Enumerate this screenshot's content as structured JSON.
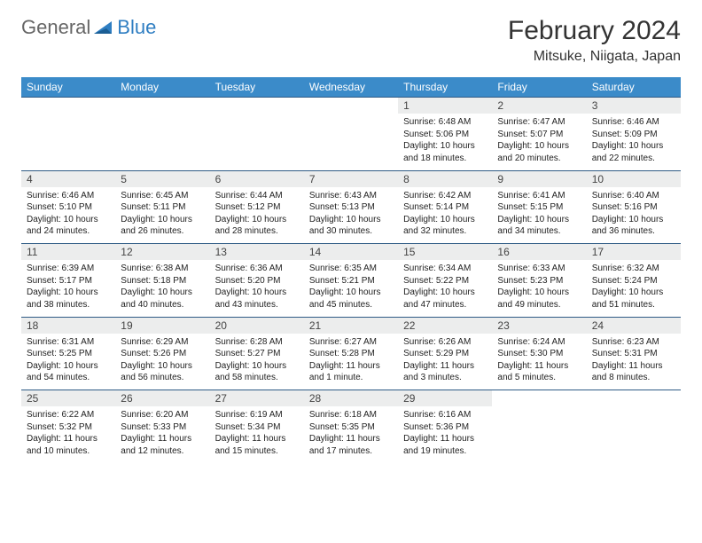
{
  "brand": {
    "part1": "General",
    "part2": "Blue"
  },
  "title": "February 2024",
  "location": "Mitsuke, Niigata, Japan",
  "colors": {
    "header_bg": "#3b8bc9",
    "header_text": "#ffffff",
    "daynum_bg": "#eceded",
    "rule": "#2f5b85",
    "brand_blue": "#2f7ec2",
    "text": "#222222",
    "bg": "#ffffff"
  },
  "weekdays": [
    "Sunday",
    "Monday",
    "Tuesday",
    "Wednesday",
    "Thursday",
    "Friday",
    "Saturday"
  ],
  "weeks": [
    [
      null,
      null,
      null,
      null,
      {
        "n": "1",
        "sr": "6:48 AM",
        "ss": "5:06 PM",
        "dl": "10 hours and 18 minutes."
      },
      {
        "n": "2",
        "sr": "6:47 AM",
        "ss": "5:07 PM",
        "dl": "10 hours and 20 minutes."
      },
      {
        "n": "3",
        "sr": "6:46 AM",
        "ss": "5:09 PM",
        "dl": "10 hours and 22 minutes."
      }
    ],
    [
      {
        "n": "4",
        "sr": "6:46 AM",
        "ss": "5:10 PM",
        "dl": "10 hours and 24 minutes."
      },
      {
        "n": "5",
        "sr": "6:45 AM",
        "ss": "5:11 PM",
        "dl": "10 hours and 26 minutes."
      },
      {
        "n": "6",
        "sr": "6:44 AM",
        "ss": "5:12 PM",
        "dl": "10 hours and 28 minutes."
      },
      {
        "n": "7",
        "sr": "6:43 AM",
        "ss": "5:13 PM",
        "dl": "10 hours and 30 minutes."
      },
      {
        "n": "8",
        "sr": "6:42 AM",
        "ss": "5:14 PM",
        "dl": "10 hours and 32 minutes."
      },
      {
        "n": "9",
        "sr": "6:41 AM",
        "ss": "5:15 PM",
        "dl": "10 hours and 34 minutes."
      },
      {
        "n": "10",
        "sr": "6:40 AM",
        "ss": "5:16 PM",
        "dl": "10 hours and 36 minutes."
      }
    ],
    [
      {
        "n": "11",
        "sr": "6:39 AM",
        "ss": "5:17 PM",
        "dl": "10 hours and 38 minutes."
      },
      {
        "n": "12",
        "sr": "6:38 AM",
        "ss": "5:18 PM",
        "dl": "10 hours and 40 minutes."
      },
      {
        "n": "13",
        "sr": "6:36 AM",
        "ss": "5:20 PM",
        "dl": "10 hours and 43 minutes."
      },
      {
        "n": "14",
        "sr": "6:35 AM",
        "ss": "5:21 PM",
        "dl": "10 hours and 45 minutes."
      },
      {
        "n": "15",
        "sr": "6:34 AM",
        "ss": "5:22 PM",
        "dl": "10 hours and 47 minutes."
      },
      {
        "n": "16",
        "sr": "6:33 AM",
        "ss": "5:23 PM",
        "dl": "10 hours and 49 minutes."
      },
      {
        "n": "17",
        "sr": "6:32 AM",
        "ss": "5:24 PM",
        "dl": "10 hours and 51 minutes."
      }
    ],
    [
      {
        "n": "18",
        "sr": "6:31 AM",
        "ss": "5:25 PM",
        "dl": "10 hours and 54 minutes."
      },
      {
        "n": "19",
        "sr": "6:29 AM",
        "ss": "5:26 PM",
        "dl": "10 hours and 56 minutes."
      },
      {
        "n": "20",
        "sr": "6:28 AM",
        "ss": "5:27 PM",
        "dl": "10 hours and 58 minutes."
      },
      {
        "n": "21",
        "sr": "6:27 AM",
        "ss": "5:28 PM",
        "dl": "11 hours and 1 minute."
      },
      {
        "n": "22",
        "sr": "6:26 AM",
        "ss": "5:29 PM",
        "dl": "11 hours and 3 minutes."
      },
      {
        "n": "23",
        "sr": "6:24 AM",
        "ss": "5:30 PM",
        "dl": "11 hours and 5 minutes."
      },
      {
        "n": "24",
        "sr": "6:23 AM",
        "ss": "5:31 PM",
        "dl": "11 hours and 8 minutes."
      }
    ],
    [
      {
        "n": "25",
        "sr": "6:22 AM",
        "ss": "5:32 PM",
        "dl": "11 hours and 10 minutes."
      },
      {
        "n": "26",
        "sr": "6:20 AM",
        "ss": "5:33 PM",
        "dl": "11 hours and 12 minutes."
      },
      {
        "n": "27",
        "sr": "6:19 AM",
        "ss": "5:34 PM",
        "dl": "11 hours and 15 minutes."
      },
      {
        "n": "28",
        "sr": "6:18 AM",
        "ss": "5:35 PM",
        "dl": "11 hours and 17 minutes."
      },
      {
        "n": "29",
        "sr": "6:16 AM",
        "ss": "5:36 PM",
        "dl": "11 hours and 19 minutes."
      },
      null,
      null
    ]
  ],
  "labels": {
    "sunrise": "Sunrise: ",
    "sunset": "Sunset: ",
    "daylight": "Daylight: "
  }
}
